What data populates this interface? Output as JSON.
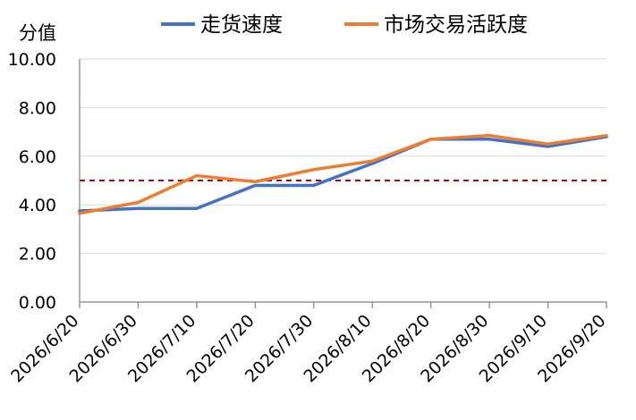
{
  "chart_data": {
    "type": "line",
    "ylabel": "分值",
    "xlabel": "",
    "ylim": [
      0,
      10
    ],
    "y_ticks": [
      "0.00",
      "2.00",
      "4.00",
      "6.00",
      "8.00",
      "10.00"
    ],
    "categories": [
      "2026/6/20",
      "2026/6/30",
      "2026/7/10",
      "2026/7/20",
      "2026/7/30",
      "2026/8/10",
      "2026/8/20",
      "2026/8/30",
      "2026/9/10",
      "2026/9/20"
    ],
    "series": [
      {
        "name": "走货速度",
        "color": "#4472c4",
        "values": [
          3.75,
          3.85,
          3.85,
          4.8,
          4.8,
          5.7,
          6.7,
          6.7,
          6.4,
          6.8
        ]
      },
      {
        "name": "市场交易活跃度",
        "color": "#ed7d31",
        "values": [
          3.65,
          4.1,
          5.2,
          4.95,
          5.45,
          5.8,
          6.7,
          6.85,
          6.5,
          6.85
        ]
      }
    ],
    "reference_line": {
      "value": 5,
      "color": "#c00000",
      "style": "dashed"
    },
    "grid": "horizontal",
    "legend": "top"
  }
}
